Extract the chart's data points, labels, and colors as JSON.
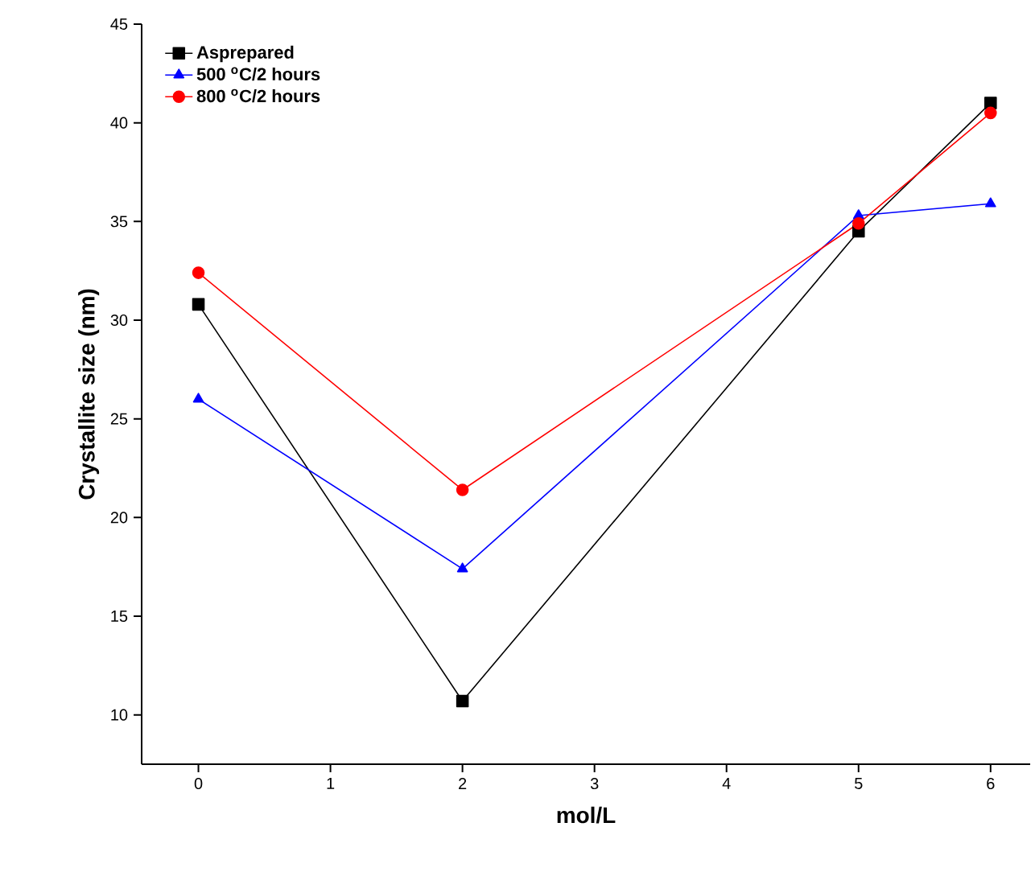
{
  "chart_data": {
    "type": "line",
    "xlabel": "mol/L",
    "ylabel": "Crystallite size (nm)",
    "x": [
      0,
      2,
      5,
      6
    ],
    "series": [
      {
        "name": "Asprepared",
        "color": "#000000",
        "marker": "square",
        "values": [
          30.8,
          10.7,
          34.5,
          41.0
        ]
      },
      {
        "name": "500 $^{o}$C/2 hours",
        "color": "#0000ff",
        "marker": "triangle",
        "values": [
          26.0,
          17.4,
          35.3,
          35.9
        ]
      },
      {
        "name": "800 $^{o}$C/2 hours",
        "color": "#ff0000",
        "marker": "circle",
        "values": [
          32.4,
          21.4,
          34.9,
          40.5
        ]
      }
    ],
    "xlim": [
      -0.43,
      6.3
    ],
    "xticks": [
      0,
      1,
      2,
      3,
      4,
      5,
      6
    ],
    "ylim": [
      7.5,
      45
    ],
    "yticks": [
      10,
      15,
      20,
      25,
      30,
      35,
      40,
      45
    ],
    "legend": "top left",
    "line_style": "solid",
    "grid": false
  }
}
